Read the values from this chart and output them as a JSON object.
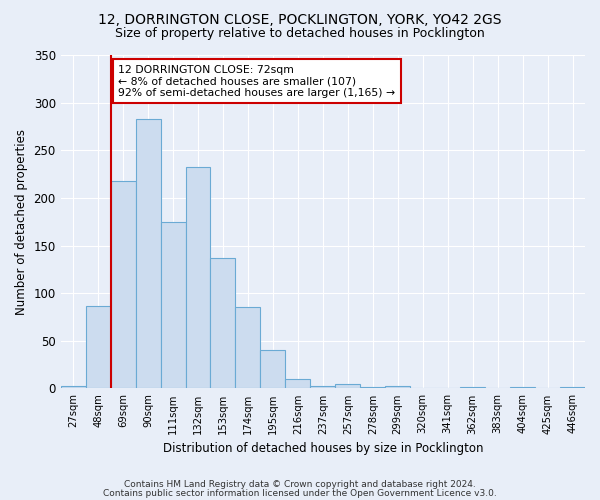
{
  "title": "12, DORRINGTON CLOSE, POCKLINGTON, YORK, YO42 2GS",
  "subtitle": "Size of property relative to detached houses in Pocklington",
  "xlabel": "Distribution of detached houses by size in Pocklington",
  "ylabel": "Number of detached properties",
  "categories": [
    "27sqm",
    "48sqm",
    "69sqm",
    "90sqm",
    "111sqm",
    "132sqm",
    "153sqm",
    "174sqm",
    "195sqm",
    "216sqm",
    "237sqm",
    "257sqm",
    "278sqm",
    "299sqm",
    "320sqm",
    "341sqm",
    "362sqm",
    "383sqm",
    "404sqm",
    "425sqm",
    "446sqm"
  ],
  "values": [
    3,
    87,
    218,
    283,
    175,
    232,
    137,
    85,
    40,
    10,
    3,
    5,
    2,
    3,
    0,
    0,
    2,
    0,
    1,
    0,
    2
  ],
  "bar_color": "#ccdcef",
  "bar_edge_color": "#6aaad4",
  "annotation_text": "12 DORRINGTON CLOSE: 72sqm\n← 8% of detached houses are smaller (107)\n92% of semi-detached houses are larger (1,165) →",
  "annotation_box_color": "#ffffff",
  "annotation_box_edge_color": "#cc0000",
  "vline_color": "#cc0000",
  "vline_x_index": 2,
  "footer1": "Contains HM Land Registry data © Crown copyright and database right 2024.",
  "footer2": "Contains public sector information licensed under the Open Government Licence v3.0.",
  "bg_color": "#e8eef8",
  "plot_bg_color": "#e8eef8",
  "grid_color": "#ffffff",
  "ylim": [
    0,
    350
  ],
  "yticks": [
    0,
    50,
    100,
    150,
    200,
    250,
    300,
    350
  ]
}
